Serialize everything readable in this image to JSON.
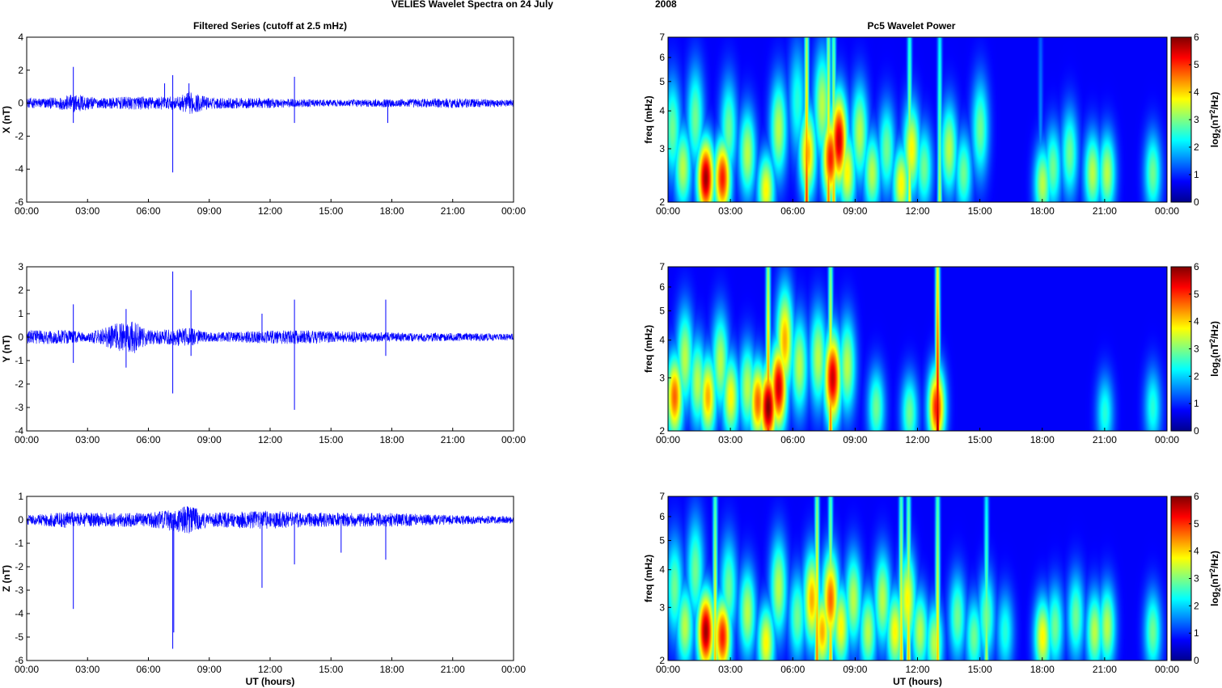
{
  "figure": {
    "title_part1": "VELIES Wavelet Spectra on 24 July",
    "title_part2": "2008",
    "left_title": "Filtered Series (cutoff at 2.5 mHz)",
    "right_title": "Pc5 Wavelet Power"
  },
  "colors": {
    "trace": "#0000ff",
    "axes": "#000000",
    "background": "#ffffff",
    "colormap": "jet"
  },
  "chart_data": [
    {
      "type": "line",
      "panel": "X",
      "ylabel": "X (nT)",
      "xlabel": "",
      "x_ticks": [
        "00:00",
        "03:00",
        "06:00",
        "09:00",
        "12:00",
        "15:00",
        "18:00",
        "21:00",
        "00:00"
      ],
      "xlim_hours": [
        0,
        24
      ],
      "ylim": [
        -6,
        4
      ],
      "y_ticks": [
        4,
        2,
        0,
        -2,
        -4,
        -6
      ],
      "spikes": [
        {
          "t": 2.3,
          "v": 2.2
        },
        {
          "t": 2.3,
          "v": -1.2
        },
        {
          "t": 6.8,
          "v": 1.2
        },
        {
          "t": 7.2,
          "v": 1.7
        },
        {
          "t": 7.2,
          "v": -4.2
        },
        {
          "t": 8.0,
          "v": 1.2
        },
        {
          "t": 13.2,
          "v": 1.6
        },
        {
          "t": 13.2,
          "v": -1.2
        },
        {
          "t": 17.8,
          "v": -1.2
        }
      ],
      "noise_envelope": [
        {
          "t": 0,
          "a": 0.3
        },
        {
          "t": 1.5,
          "a": 0.35
        },
        {
          "t": 2.5,
          "a": 0.6
        },
        {
          "t": 3.5,
          "a": 0.3
        },
        {
          "t": 5,
          "a": 0.4
        },
        {
          "t": 7.5,
          "a": 0.4
        },
        {
          "t": 8,
          "a": 0.7
        },
        {
          "t": 9,
          "a": 0.35
        },
        {
          "t": 12,
          "a": 0.3
        },
        {
          "t": 15,
          "a": 0.2
        },
        {
          "t": 21,
          "a": 0.3
        },
        {
          "t": 24,
          "a": 0.2
        }
      ]
    },
    {
      "type": "line",
      "panel": "Y",
      "ylabel": "Y (nT)",
      "xlabel": "",
      "x_ticks": [
        "00:00",
        "03:00",
        "06:00",
        "09:00",
        "12:00",
        "15:00",
        "18:00",
        "21:00",
        "00:00"
      ],
      "xlim_hours": [
        0,
        24
      ],
      "ylim": [
        -4,
        3
      ],
      "y_ticks": [
        3,
        2,
        1,
        0,
        -1,
        -2,
        -3,
        -4
      ],
      "spikes": [
        {
          "t": 2.3,
          "v": 1.4
        },
        {
          "t": 2.3,
          "v": -1.1
        },
        {
          "t": 4.9,
          "v": 1.2
        },
        {
          "t": 4.9,
          "v": -1.3
        },
        {
          "t": 7.2,
          "v": 2.8
        },
        {
          "t": 7.2,
          "v": -2.4
        },
        {
          "t": 8.1,
          "v": 2.0
        },
        {
          "t": 8.1,
          "v": -0.8
        },
        {
          "t": 11.6,
          "v": 1.0
        },
        {
          "t": 13.2,
          "v": 1.6
        },
        {
          "t": 13.2,
          "v": -3.1
        },
        {
          "t": 17.7,
          "v": 1.6
        },
        {
          "t": 17.7,
          "v": -0.8
        }
      ],
      "noise_envelope": [
        {
          "t": 0,
          "a": 0.3
        },
        {
          "t": 2,
          "a": 0.3
        },
        {
          "t": 3,
          "a": 0.2
        },
        {
          "t": 4.5,
          "a": 0.6
        },
        {
          "t": 5.3,
          "a": 0.7
        },
        {
          "t": 6,
          "a": 0.3
        },
        {
          "t": 8,
          "a": 0.4
        },
        {
          "t": 9,
          "a": 0.2
        },
        {
          "t": 13,
          "a": 0.3
        },
        {
          "t": 18,
          "a": 0.2
        },
        {
          "t": 24,
          "a": 0.15
        }
      ]
    },
    {
      "type": "line",
      "panel": "Z",
      "ylabel": "Z (nT)",
      "xlabel": "UT (hours)",
      "x_ticks": [
        "00:00",
        "03:00",
        "06:00",
        "09:00",
        "12:00",
        "15:00",
        "18:00",
        "21:00",
        "00:00"
      ],
      "xlim_hours": [
        0,
        24
      ],
      "ylim": [
        -6,
        1
      ],
      "y_ticks": [
        1,
        0,
        -1,
        -2,
        -3,
        -4,
        -5,
        -6
      ],
      "spikes": [
        {
          "t": 2.3,
          "v": -3.8
        },
        {
          "t": 7.2,
          "v": -5.5
        },
        {
          "t": 7.25,
          "v": -4.8
        },
        {
          "t": 11.6,
          "v": -2.9
        },
        {
          "t": 13.2,
          "v": -1.9
        },
        {
          "t": 15.5,
          "v": -1.4
        },
        {
          "t": 17.7,
          "v": -1.7
        }
      ],
      "noise_envelope": [
        {
          "t": 0,
          "a": 0.2
        },
        {
          "t": 2,
          "a": 0.35
        },
        {
          "t": 3,
          "a": 0.3
        },
        {
          "t": 6,
          "a": 0.3
        },
        {
          "t": 8,
          "a": 0.6
        },
        {
          "t": 9,
          "a": 0.3
        },
        {
          "t": 12,
          "a": 0.4
        },
        {
          "t": 14,
          "a": 0.3
        },
        {
          "t": 18,
          "a": 0.3
        },
        {
          "t": 21,
          "a": 0.2
        },
        {
          "t": 24,
          "a": 0.15
        }
      ]
    },
    {
      "type": "heatmap",
      "panel": "X power",
      "ylabel": "freq (mHz)",
      "xlabel": "",
      "colorbar_label": "log2(nT2/Hz)",
      "x_ticks": [
        "00:00",
        "03:00",
        "06:00",
        "09:00",
        "12:00",
        "15:00",
        "18:00",
        "21:00",
        "00:00"
      ],
      "xlim_hours": [
        0,
        24
      ],
      "ylim_mHz": [
        2,
        7
      ],
      "y_scale": "log",
      "y_ticks": [
        2,
        3,
        4,
        5,
        6,
        7
      ],
      "clim": [
        0,
        6
      ],
      "colorbar_ticks": [
        0,
        1,
        2,
        3,
        4,
        5,
        6
      ],
      "blobs": [
        {
          "t": 0.2,
          "f": 3.5,
          "p": 2.5
        },
        {
          "t": 0.7,
          "f": 2.6,
          "p": 3
        },
        {
          "t": 1.3,
          "f": 3.8,
          "p": 2.5
        },
        {
          "t": 1.8,
          "f": 2.4,
          "p": 5.8
        },
        {
          "t": 2.6,
          "f": 2.4,
          "p": 5
        },
        {
          "t": 2.9,
          "f": 3.5,
          "p": 2.5
        },
        {
          "t": 3.8,
          "f": 2.9,
          "p": 3
        },
        {
          "t": 4.7,
          "f": 2.2,
          "p": 3.5
        },
        {
          "t": 5.3,
          "f": 3.5,
          "p": 3
        },
        {
          "t": 6.2,
          "f": 4.3,
          "p": 2
        },
        {
          "t": 6.7,
          "f": 2.9,
          "p": 4
        },
        {
          "t": 7.4,
          "f": 4.2,
          "p": 3
        },
        {
          "t": 7.8,
          "f": 2.8,
          "p": 5
        },
        {
          "t": 8.2,
          "f": 3.2,
          "p": 5.5
        },
        {
          "t": 8.6,
          "f": 2.5,
          "p": 3.5
        },
        {
          "t": 9.2,
          "f": 3.4,
          "p": 3
        },
        {
          "t": 9.8,
          "f": 2.5,
          "p": 3
        },
        {
          "t": 10.5,
          "f": 3,
          "p": 2.5
        },
        {
          "t": 11.2,
          "f": 2.3,
          "p": 3.5
        },
        {
          "t": 11.7,
          "f": 3,
          "p": 3.5
        },
        {
          "t": 12.3,
          "f": 2.6,
          "p": 2.5
        },
        {
          "t": 13.5,
          "f": 3,
          "p": 3
        },
        {
          "t": 14.2,
          "f": 2.5,
          "p": 2.5
        },
        {
          "t": 15.0,
          "f": 3.5,
          "p": 2.5
        },
        {
          "t": 18.0,
          "f": 2.3,
          "p": 3
        },
        {
          "t": 18.5,
          "f": 2.6,
          "p": 2.5
        },
        {
          "t": 19.3,
          "f": 2.9,
          "p": 2.5
        },
        {
          "t": 20.4,
          "f": 2.5,
          "p": 3
        },
        {
          "t": 21.1,
          "f": 2.5,
          "p": 3
        },
        {
          "t": 23.3,
          "f": 2.5,
          "p": 2.5
        }
      ],
      "streaks": [
        {
          "t": 6.65,
          "p": 5
        },
        {
          "t": 7.7,
          "p": 4.5
        },
        {
          "t": 7.95,
          "p": 4
        },
        {
          "t": 11.6,
          "p": 3.5
        },
        {
          "t": 13.05,
          "p": 3
        },
        {
          "t": 17.9,
          "p": 1.2
        }
      ]
    },
    {
      "type": "heatmap",
      "panel": "Y power",
      "ylabel": "freq (mHz)",
      "xlabel": "",
      "colorbar_label": "log2(nT2/Hz)",
      "x_ticks": [
        "00:00",
        "03:00",
        "06:00",
        "09:00",
        "12:00",
        "15:00",
        "18:00",
        "21:00",
        "00:00"
      ],
      "xlim_hours": [
        0,
        24
      ],
      "ylim_mHz": [
        2,
        7
      ],
      "y_scale": "log",
      "y_ticks": [
        2,
        3,
        4,
        5,
        6,
        7
      ],
      "clim": [
        0,
        6
      ],
      "colorbar_ticks": [
        0,
        1,
        2,
        3,
        4,
        5,
        6
      ],
      "blobs": [
        {
          "t": 0.3,
          "f": 2.6,
          "p": 4.5
        },
        {
          "t": 0.8,
          "f": 3.5,
          "p": 3
        },
        {
          "t": 1.4,
          "f": 2.9,
          "p": 3
        },
        {
          "t": 1.9,
          "f": 2.6,
          "p": 4
        },
        {
          "t": 2.5,
          "f": 3.4,
          "p": 3
        },
        {
          "t": 3.0,
          "f": 2.6,
          "p": 3.5
        },
        {
          "t": 3.8,
          "f": 2.8,
          "p": 3
        },
        {
          "t": 4.3,
          "f": 2.5,
          "p": 4.5
        },
        {
          "t": 4.8,
          "f": 2.4,
          "p": 6
        },
        {
          "t": 5.3,
          "f": 2.8,
          "p": 5.5
        },
        {
          "t": 5.6,
          "f": 4,
          "p": 4
        },
        {
          "t": 6.3,
          "f": 3.3,
          "p": 3
        },
        {
          "t": 7.2,
          "f": 3.5,
          "p": 3
        },
        {
          "t": 7.9,
          "f": 3,
          "p": 5.5
        },
        {
          "t": 8.6,
          "f": 3.3,
          "p": 3
        },
        {
          "t": 10.0,
          "f": 2.4,
          "p": 2.5
        },
        {
          "t": 11.6,
          "f": 2.3,
          "p": 2.5
        },
        {
          "t": 12.9,
          "f": 2.4,
          "p": 5
        },
        {
          "t": 21.0,
          "f": 2.3,
          "p": 2
        },
        {
          "t": 23.3,
          "f": 2.4,
          "p": 2
        }
      ],
      "streaks": [
        {
          "t": 4.8,
          "p": 5
        },
        {
          "t": 7.8,
          "p": 4.5
        },
        {
          "t": 12.95,
          "p": 6
        }
      ]
    },
    {
      "type": "heatmap",
      "panel": "Z power",
      "ylabel": "freq (mHz)",
      "xlabel": "UT (hours)",
      "colorbar_label": "log2(nT2/Hz)",
      "x_ticks": [
        "00:00",
        "03:00",
        "06:00",
        "09:00",
        "12:00",
        "15:00",
        "18:00",
        "21:00",
        "00:00"
      ],
      "xlim_hours": [
        0,
        24
      ],
      "ylim_mHz": [
        2,
        7
      ],
      "y_scale": "log",
      "y_ticks": [
        2,
        3,
        4,
        5,
        6,
        7
      ],
      "clim": [
        0,
        6
      ],
      "colorbar_ticks": [
        0,
        1,
        2,
        3,
        4,
        5,
        6
      ],
      "blobs": [
        {
          "t": 0.3,
          "f": 3.5,
          "p": 2.5
        },
        {
          "t": 0.8,
          "f": 2.6,
          "p": 3
        },
        {
          "t": 1.3,
          "f": 4,
          "p": 2.5
        },
        {
          "t": 1.8,
          "f": 2.5,
          "p": 5.8
        },
        {
          "t": 2.6,
          "f": 2.4,
          "p": 5
        },
        {
          "t": 2.9,
          "f": 3.5,
          "p": 2.5
        },
        {
          "t": 3.8,
          "f": 2.9,
          "p": 3
        },
        {
          "t": 4.7,
          "f": 2.3,
          "p": 3.5
        },
        {
          "t": 5.3,
          "f": 3.5,
          "p": 3
        },
        {
          "t": 6.2,
          "f": 2.8,
          "p": 2.5
        },
        {
          "t": 6.9,
          "f": 3.2,
          "p": 4
        },
        {
          "t": 7.4,
          "f": 2.5,
          "p": 4
        },
        {
          "t": 7.8,
          "f": 3.2,
          "p": 4.5
        },
        {
          "t": 8.3,
          "f": 2.6,
          "p": 3.5
        },
        {
          "t": 8.9,
          "f": 3.2,
          "p": 3
        },
        {
          "t": 9.6,
          "f": 2.5,
          "p": 3
        },
        {
          "t": 10.3,
          "f": 3.2,
          "p": 3
        },
        {
          "t": 10.9,
          "f": 2.5,
          "p": 3.5
        },
        {
          "t": 11.5,
          "f": 3.2,
          "p": 3.5
        },
        {
          "t": 12.1,
          "f": 2.5,
          "p": 3
        },
        {
          "t": 12.8,
          "f": 2.3,
          "p": 3
        },
        {
          "t": 13.9,
          "f": 2.8,
          "p": 2.5
        },
        {
          "t": 14.7,
          "f": 2.4,
          "p": 2.5
        },
        {
          "t": 15.3,
          "f": 2.8,
          "p": 2.5
        },
        {
          "t": 16.2,
          "f": 2.5,
          "p": 2
        },
        {
          "t": 18.0,
          "f": 2.4,
          "p": 3.5
        },
        {
          "t": 18.6,
          "f": 2.6,
          "p": 2.5
        },
        {
          "t": 19.6,
          "f": 2.8,
          "p": 2.5
        },
        {
          "t": 20.5,
          "f": 2.5,
          "p": 3
        },
        {
          "t": 21.1,
          "f": 2.6,
          "p": 3
        },
        {
          "t": 23.3,
          "f": 2.5,
          "p": 2.5
        }
      ],
      "streaks": [
        {
          "t": 2.25,
          "p": 4
        },
        {
          "t": 7.15,
          "p": 4.5
        },
        {
          "t": 7.8,
          "p": 4
        },
        {
          "t": 11.2,
          "p": 4
        },
        {
          "t": 11.55,
          "p": 4
        },
        {
          "t": 12.95,
          "p": 4
        },
        {
          "t": 15.3,
          "p": 3
        }
      ]
    }
  ]
}
